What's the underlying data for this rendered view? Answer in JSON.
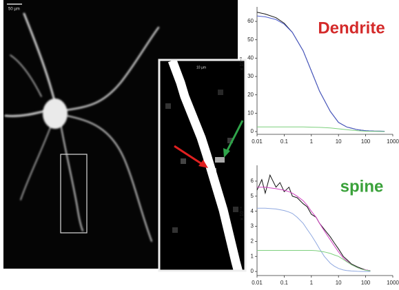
{
  "image": {
    "scale_label": "50 µm"
  },
  "inset": {
    "scale_label": "10 µm"
  },
  "chart_data": [
    {
      "type": "line",
      "annotation": "Dendrite",
      "annotation_color": "#d42a2a",
      "ylabel": "x 10⁻³",
      "xscale": "log",
      "x": [
        0.01,
        0.02,
        0.05,
        0.1,
        0.2,
        0.5,
        1,
        2,
        5,
        10,
        20,
        50,
        100,
        200,
        500
      ],
      "xlim": [
        0.01,
        1000
      ],
      "xticks": [
        0.01,
        0.1,
        1,
        10,
        100,
        1000
      ],
      "ylim": [
        -1.5,
        67.9
      ],
      "yticks": [
        0,
        10,
        20,
        30,
        40,
        50,
        60
      ],
      "series": [
        {
          "color": "#111111",
          "values": [
            65,
            64,
            62,
            59,
            54,
            44,
            33,
            22,
            11,
            5,
            2.5,
            1,
            0.5,
            0.3,
            0.2
          ]
        },
        {
          "color": "#4a5bd0",
          "values": [
            63,
            62.5,
            61,
            58.5,
            54,
            44,
            33,
            22,
            11,
            5,
            2.5,
            1,
            0.5,
            0.3,
            0.2
          ]
        },
        {
          "color": "#7ccf7c",
          "values": [
            2.5,
            2.5,
            2.5,
            2.5,
            2.5,
            2.5,
            2.4,
            2.3,
            2,
            1.5,
            1,
            0.5,
            0.2,
            0.1,
            0
          ]
        }
      ]
    },
    {
      "type": "line",
      "annotation": "spine",
      "annotation_color": "#3aa13a",
      "ylabel": "x 10⁻³",
      "xscale": "log",
      "x": [
        0.01,
        0.015,
        0.02,
        0.03,
        0.05,
        0.07,
        0.1,
        0.15,
        0.2,
        0.3,
        0.5,
        0.7,
        1,
        1.5,
        2,
        3,
        5,
        7,
        10,
        15,
        20,
        30,
        50,
        70,
        100,
        150
      ],
      "xlim": [
        0.01,
        1000
      ],
      "xticks": [
        0.01,
        0.1,
        1,
        10,
        100,
        1000
      ],
      "ylim": [
        -0.27,
        7.05
      ],
      "yticks": [
        0,
        1,
        2,
        3,
        4,
        5,
        6
      ],
      "series": [
        {
          "color": "#111111",
          "values": [
            5.4,
            6.1,
            5.2,
            6.4,
            5.6,
            5.9,
            5.3,
            5.6,
            5.0,
            4.9,
            4.5,
            4.3,
            3.8,
            3.6,
            3.2,
            2.8,
            2.3,
            1.9,
            1.5,
            1.0,
            0.8,
            0.5,
            0.3,
            0.2,
            0.1,
            0.05
          ]
        },
        {
          "color": "#d040c0",
          "values": [
            5.6,
            5.6,
            5.6,
            5.55,
            5.5,
            5.45,
            5.4,
            5.3,
            5.2,
            5.0,
            4.7,
            4.4,
            4.0,
            3.6,
            3.2,
            2.7,
            2.1,
            1.7,
            1.3,
            0.9,
            0.7,
            0.45,
            0.25,
            0.15,
            0.1,
            0.05
          ]
        },
        {
          "color": "#8fa8e0",
          "values": [
            4.2,
            4.2,
            4.2,
            4.18,
            4.15,
            4.1,
            4.05,
            3.95,
            3.85,
            3.6,
            3.2,
            2.8,
            2.4,
            1.9,
            1.5,
            1.0,
            0.55,
            0.35,
            0.2,
            0.1,
            0.06,
            0.03,
            0.01,
            0,
            0,
            0
          ]
        },
        {
          "color": "#7ccf7c",
          "values": [
            1.4,
            1.4,
            1.4,
            1.4,
            1.4,
            1.4,
            1.4,
            1.4,
            1.4,
            1.4,
            1.4,
            1.4,
            1.4,
            1.38,
            1.35,
            1.3,
            1.2,
            1.1,
            1.0,
            0.8,
            0.65,
            0.45,
            0.25,
            0.15,
            0.08,
            0.04
          ]
        }
      ]
    }
  ]
}
